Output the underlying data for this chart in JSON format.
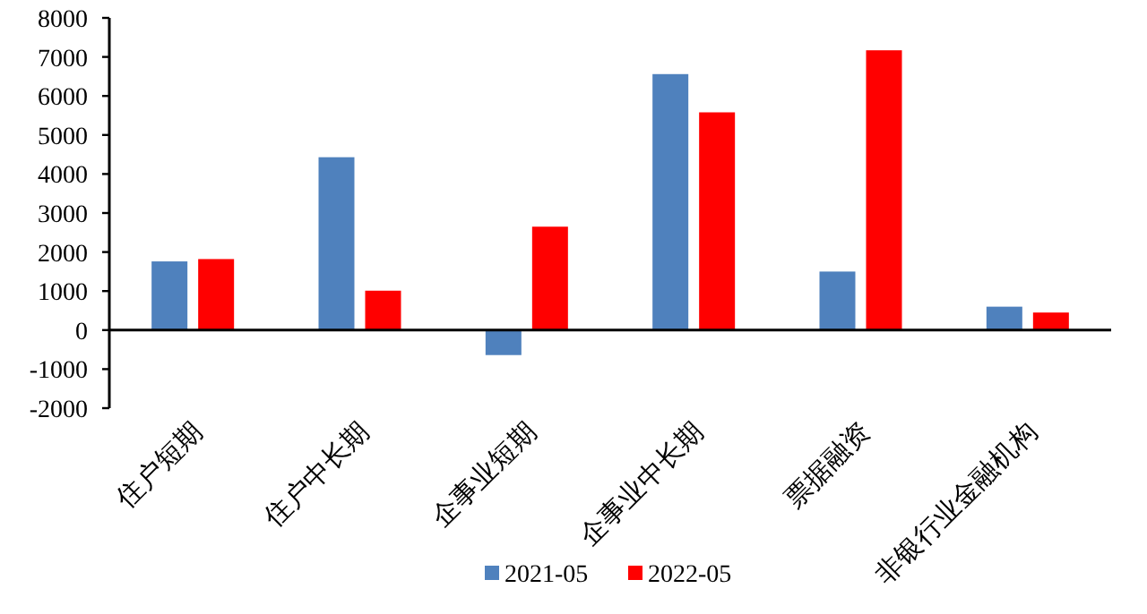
{
  "chart_data": {
    "type": "bar",
    "categories": [
      "住户短期",
      "住户中长期",
      "企事业短期",
      "企事业中长期",
      "票据融资",
      "非银行业金融机构"
    ],
    "series": [
      {
        "name": "2021-05",
        "color": "#4f81bd",
        "values": [
          1760,
          4430,
          -640,
          6560,
          1500,
          600
        ]
      },
      {
        "name": "2022-05",
        "color": "#ff0000",
        "values": [
          1820,
          1010,
          2650,
          5580,
          7170,
          450
        ]
      }
    ],
    "ylim": [
      -2000,
      8000
    ],
    "yticks": [
      -2000,
      -1000,
      0,
      1000,
      2000,
      3000,
      4000,
      5000,
      6000,
      7000,
      8000
    ],
    "legend": "bottom"
  }
}
